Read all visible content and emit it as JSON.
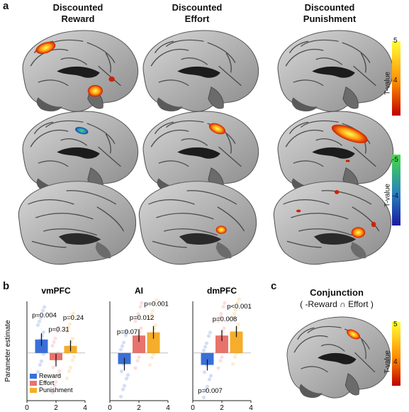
{
  "panels": {
    "a": "a",
    "b": "b",
    "c": "c"
  },
  "columns": [
    {
      "line1": "Discounted",
      "line2": "Reward"
    },
    {
      "line1": "Discounted",
      "line2": "Effort"
    },
    {
      "line1": "Discounted",
      "line2": "Punishment"
    }
  ],
  "colorbars": [
    {
      "label": "T-value",
      "top": "5",
      "bottom": "4",
      "colors": [
        "#ffff33",
        "#ff8c00",
        "#c00000"
      ]
    },
    {
      "label": "T-value",
      "top": "-5",
      "mid": "-4",
      "colors": [
        "#44dd44",
        "#2a7fbf",
        "#1a1aa0"
      ]
    },
    {
      "label": "T-value",
      "top": "5",
      "bottom": "4",
      "colors": [
        "#ffff33",
        "#ff8c00",
        "#c00000"
      ]
    }
  ],
  "conjunction": {
    "title": "Conjunction",
    "subtitle": "( -Reward ∩ Effort )"
  },
  "chart_data": [
    {
      "type": "bar",
      "title": "vmPFC",
      "ylabel": "Parameter estimate",
      "x_ticks": [
        "0",
        "2",
        "4"
      ],
      "xlim": [
        0,
        4
      ],
      "ylim": [
        -0.6,
        0.65
      ],
      "categories": [
        "Reward",
        "Effort",
        "Punishment"
      ],
      "x": [
        1,
        2,
        3
      ],
      "values": [
        0.17,
        -0.09,
        0.09
      ],
      "errors": [
        0.08,
        0.08,
        0.07
      ],
      "colors": [
        "#3a6fd8",
        "#e8736c",
        "#f5ad2a"
      ],
      "annotations": [
        {
          "text": "p=0.004",
          "x": 1,
          "y": 0.45
        },
        {
          "text": "p=0.31",
          "x": 2,
          "y": 0.27
        },
        {
          "text": "p=0.24",
          "x": 3,
          "y": 0.42
        }
      ],
      "legend": {
        "placement": "bottom-left",
        "entries": [
          "Reward",
          "Effort",
          "Punishment"
        ]
      }
    },
    {
      "type": "bar",
      "title": "AI",
      "x_ticks": [
        "0",
        "2",
        "4"
      ],
      "xlim": [
        0,
        4
      ],
      "ylim": [
        -0.6,
        0.65
      ],
      "categories": [
        "Reward",
        "Effort",
        "Punishment"
      ],
      "x": [
        1,
        2,
        3
      ],
      "values": [
        -0.14,
        0.22,
        0.26
      ],
      "errors": [
        0.08,
        0.08,
        0.08
      ],
      "colors": [
        "#3a6fd8",
        "#e8736c",
        "#f5ad2a"
      ],
      "annotations": [
        {
          "text": "p=0.07",
          "x": 1,
          "y": 0.24
        },
        {
          "text": "p=0.012",
          "x": 2,
          "y": 0.42
        },
        {
          "text": "p=0.001",
          "x": 3,
          "y": 0.59
        }
      ]
    },
    {
      "type": "bar",
      "title": "dmPFC",
      "x_ticks": [
        "0",
        "2",
        "4"
      ],
      "xlim": [
        0,
        4
      ],
      "ylim": [
        -0.6,
        0.65
      ],
      "categories": [
        "Reward",
        "Effort",
        "Punishment"
      ],
      "x": [
        1,
        2,
        3
      ],
      "values": [
        -0.15,
        0.22,
        0.27
      ],
      "errors": [
        0.07,
        0.07,
        0.07
      ],
      "colors": [
        "#3a6fd8",
        "#e8736c",
        "#f5ad2a"
      ],
      "annotations": [
        {
          "text": "p=0.007",
          "x": 1,
          "y": -0.5
        },
        {
          "text": "p=0.008",
          "x": 2,
          "y": 0.4
        },
        {
          "text": "p<0.001",
          "x": 3,
          "y": 0.56
        }
      ]
    }
  ]
}
